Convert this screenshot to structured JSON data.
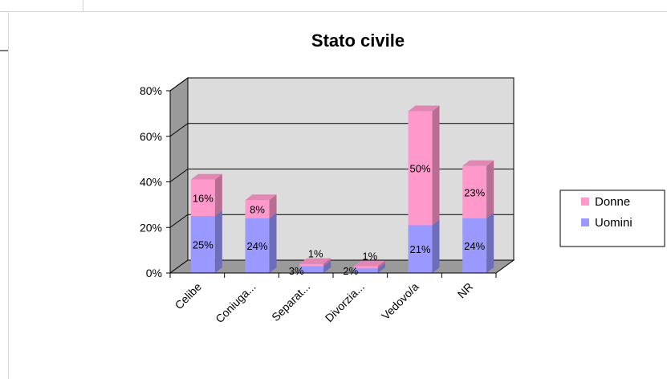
{
  "chart_data": {
    "type": "bar",
    "stacked": true,
    "title": "Stato civile",
    "categories": [
      "Celibe",
      "Coniuga...",
      "Separat...",
      "Divorzia...",
      "Vedovo/a",
      "NR"
    ],
    "series": [
      {
        "name": "Uomini",
        "values": [
          25,
          24,
          3,
          2,
          21,
          24
        ],
        "labels": [
          "25%",
          "24%",
          "3%",
          "2%",
          "21%",
          "24%"
        ],
        "color": "#9999ff"
      },
      {
        "name": "Donne",
        "values": [
          16,
          8,
          1,
          1,
          50,
          23
        ],
        "labels": [
          "16%",
          "8%",
          "1%",
          "1%",
          "50%",
          "23%"
        ],
        "color": "#ff99cc"
      }
    ],
    "ylim": [
      0,
      80
    ],
    "yticks": [
      0,
      20,
      40,
      60,
      80
    ],
    "ytick_labels": [
      "0%",
      "20%",
      "40%",
      "60%",
      "80%"
    ],
    "legend_position": "right",
    "legend_order": [
      "Donne",
      "Uomini"
    ],
    "grid": true,
    "style": "3d"
  }
}
